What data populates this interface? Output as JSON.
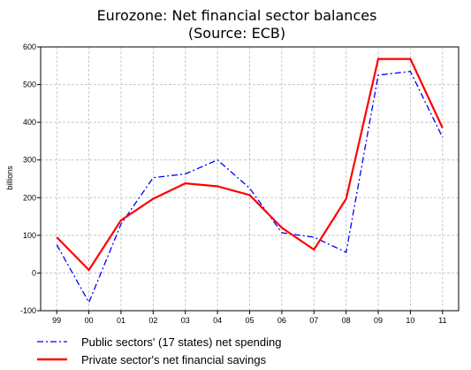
{
  "chart_data": {
    "type": "line",
    "title": "Eurozone: Net financial sector balances",
    "subtitle": "(Source: ECB)",
    "xlabel": "",
    "ylabel": "billions",
    "categories": [
      "99",
      "00",
      "01",
      "02",
      "03",
      "04",
      "05",
      "06",
      "07",
      "08",
      "09",
      "10",
      "11"
    ],
    "ylim": [
      -100,
      600
    ],
    "yticks": [
      -100,
      0,
      100,
      200,
      300,
      400,
      500,
      600
    ],
    "grid": true,
    "legend_position": "bottom",
    "series": [
      {
        "name": "Public sectors' (17 states) net spending",
        "color": "#0000ff",
        "style": "dash-dot",
        "values": [
          75,
          -78,
          130,
          253,
          263,
          300,
          225,
          107,
          95,
          55,
          525,
          535,
          360
        ]
      },
      {
        "name": "Private sector's net financial savings",
        "color": "#ff0000",
        "style": "solid",
        "values": [
          95,
          8,
          140,
          197,
          238,
          230,
          207,
          120,
          62,
          197,
          568,
          568,
          385
        ]
      }
    ]
  }
}
